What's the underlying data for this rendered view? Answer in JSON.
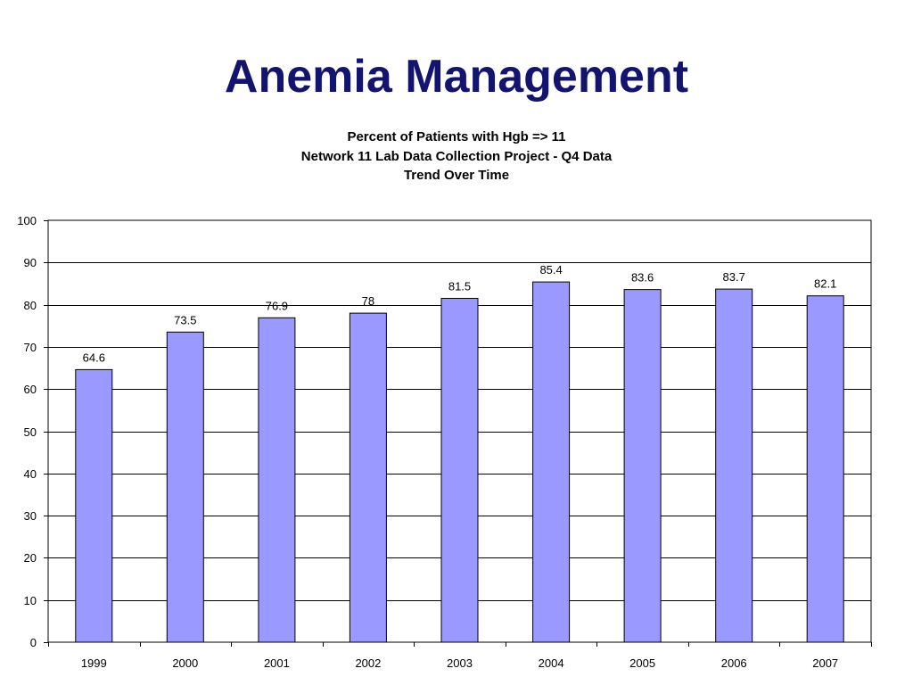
{
  "slide": {
    "title": "Anemia Management"
  },
  "chart_data": {
    "type": "bar",
    "title_lines": [
      "Percent of Patients with Hgb => 11",
      "Network 11 Lab Data Collection Project - Q4 Data",
      "Trend Over Time"
    ],
    "categories": [
      "1999",
      "2000",
      "2001",
      "2002",
      "2003",
      "2004",
      "2005",
      "2006",
      "2007"
    ],
    "values": [
      64.6,
      73.5,
      76.9,
      78,
      81.5,
      85.4,
      83.6,
      83.7,
      82.1
    ],
    "data_labels": [
      "64.6",
      "73.5",
      "76.9",
      "78",
      "81.5",
      "85.4",
      "83.6",
      "83.7",
      "82.1"
    ],
    "ylim": [
      0,
      100
    ],
    "yticks": [
      0,
      10,
      20,
      30,
      40,
      50,
      60,
      70,
      80,
      90,
      100
    ],
    "xlabel": "",
    "ylabel": "",
    "grid": true,
    "legend": false,
    "bar_color": "#9999FF",
    "title_color": "#131370"
  }
}
